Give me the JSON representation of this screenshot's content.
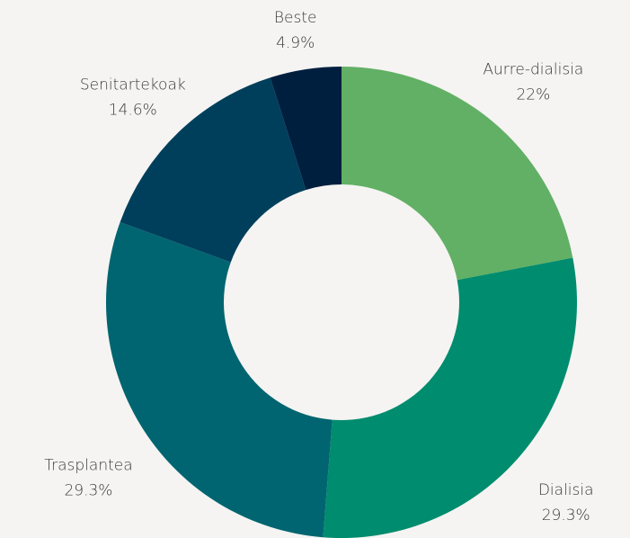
{
  "chart_data": {
    "type": "donut",
    "categories": [
      "Aurre-dialisia",
      "Dialisia",
      "Trasplantea",
      "Senitartekoak",
      "Beste"
    ],
    "values": [
      22,
      29.3,
      29.3,
      14.6,
      4.9
    ],
    "value_labels": [
      "22%",
      "29.3%",
      "29.3%",
      "14.6%",
      "4.9%"
    ],
    "colors": [
      "#62b065",
      "#008c6e",
      "#006570",
      "#003f5c",
      "#001f3f"
    ]
  }
}
